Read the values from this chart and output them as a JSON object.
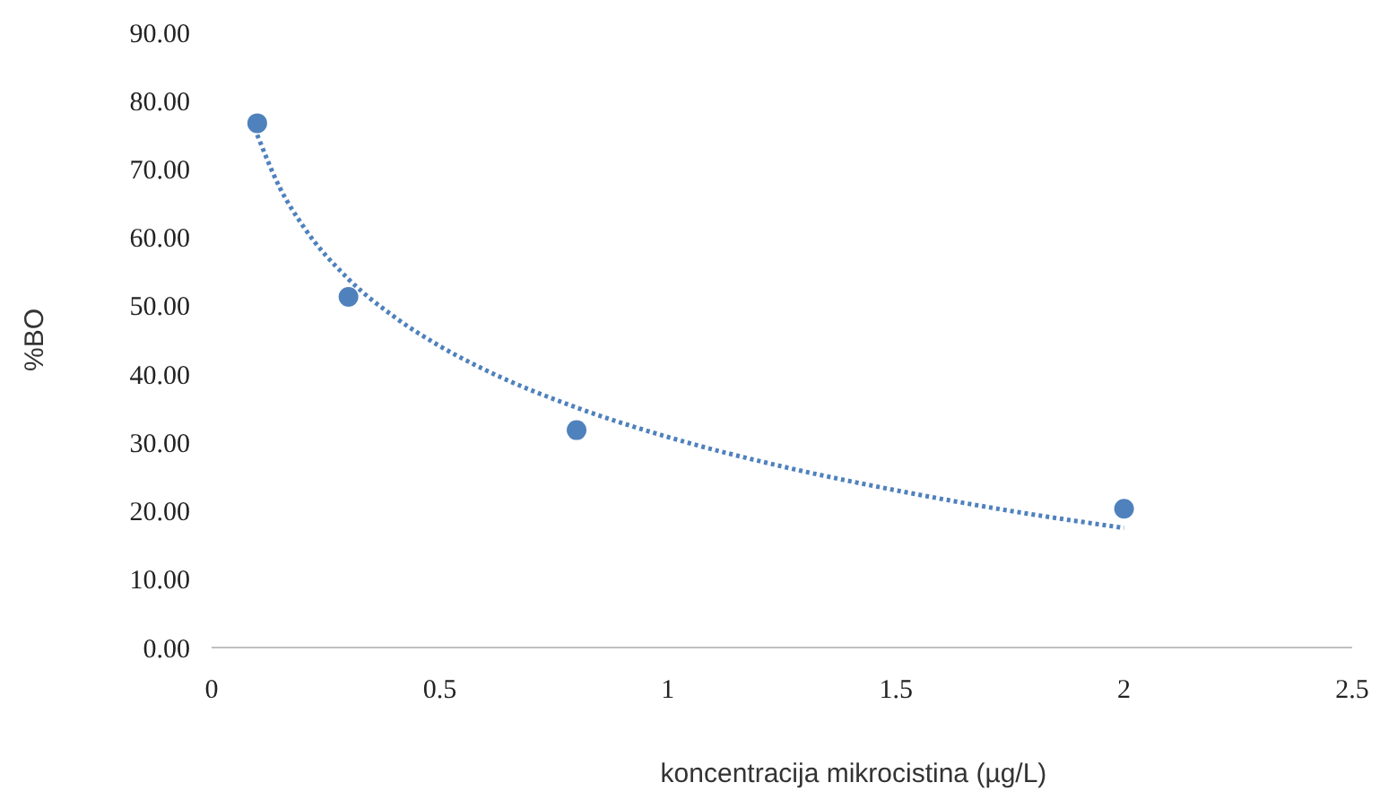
{
  "chart_data": {
    "type": "scatter",
    "xlabel": "koncentracija  mikrocistina (µg/L)",
    "ylabel": "%BO",
    "xlim": [
      0,
      2.5
    ],
    "xticks": [
      0,
      0.5,
      1,
      1.5,
      2,
      2.5
    ],
    "ylim": [
      0,
      90
    ],
    "yticks": [
      {
        "value": 0,
        "label": "0.00"
      },
      {
        "value": 10,
        "label": "10.00"
      },
      {
        "value": 20,
        "label": "20.00"
      },
      {
        "value": 30,
        "label": "30.00"
      },
      {
        "value": 40,
        "label": "40.00"
      },
      {
        "value": 50,
        "label": "50.00"
      },
      {
        "value": 60,
        "label": "60.00"
      },
      {
        "value": 70,
        "label": "70.00"
      },
      {
        "value": 80,
        "label": "80.00"
      },
      {
        "value": 90,
        "label": "90.00"
      }
    ],
    "grid": false,
    "marker": "circle",
    "series": [
      {
        "color": "#4f81bd",
        "x": [
          0.1,
          0.3,
          0.8,
          2
        ],
        "values": [
          76.7,
          51.3,
          31.8,
          20.3
        ]
      },
      {
        "type": "line",
        "color": "#4f81bd",
        "line_style": "dotted",
        "marker": "none",
        "x": [
          0.1,
          0.15,
          0.2,
          0.3,
          0.4,
          0.5,
          0.6,
          0.8,
          1,
          1.25,
          1.5,
          1.75,
          2
        ],
        "values": [
          75.0,
          67.2,
          61.7,
          53.9,
          48.4,
          44.1,
          40.6,
          35.1,
          30.8,
          26.5,
          23.0,
          20.0,
          17.5
        ]
      }
    ]
  }
}
